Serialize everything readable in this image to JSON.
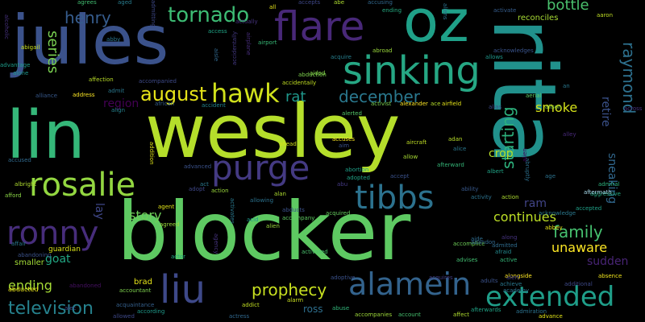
{
  "words": [
    {
      "text": "blocker",
      "color": "#5ec962"
    },
    {
      "text": "wesley",
      "color": "#b5de2b"
    },
    {
      "text": "rita",
      "color": "#21918c"
    },
    {
      "text": "jules",
      "color": "#3b528b"
    },
    {
      "text": "lin",
      "color": "#35b779"
    },
    {
      "text": "oz",
      "color": "#1fa088"
    },
    {
      "text": "flare",
      "color": "#482878"
    },
    {
      "text": "sinking",
      "color": "#26a784"
    },
    {
      "text": "purge",
      "color": "#443a83"
    },
    {
      "text": "rosalie",
      "color": "#93d741"
    },
    {
      "text": "tibbs",
      "color": "#2c728e"
    },
    {
      "text": "ronny",
      "color": "#472d7b"
    },
    {
      "text": "liu",
      "color": "#3e4989"
    },
    {
      "text": "alamein",
      "color": "#33638d"
    },
    {
      "text": "extended",
      "color": "#1f9e89"
    },
    {
      "text": "hawk",
      "color": "#d0e11c"
    },
    {
      "text": "tornado",
      "color": "#3dbc74"
    },
    {
      "text": "august",
      "color": "#e7e419"
    },
    {
      "text": "december",
      "color": "#2a788e"
    },
    {
      "text": "prophecy",
      "color": "#c8e020"
    },
    {
      "text": "television",
      "color": "#26828e"
    },
    {
      "text": "raymond",
      "color": "#2d708e"
    },
    {
      "text": "family",
      "color": "#46c06f"
    },
    {
      "text": "henry",
      "color": "#365c8d"
    },
    {
      "text": "bottle",
      "color": "#4ac16d"
    },
    {
      "text": "rat",
      "color": "#1f978b"
    },
    {
      "text": "starting",
      "color": "#2db27d"
    },
    {
      "text": "unaware",
      "color": "#fde725"
    },
    {
      "text": "continues",
      "color": "#bddf26"
    },
    {
      "text": "ending",
      "color": "#a5db36"
    },
    {
      "text": "story",
      "color": "#6ece58"
    },
    {
      "text": "smoke",
      "color": "#d5e21a"
    },
    {
      "text": "series",
      "color": "#7ad151"
    },
    {
      "text": "region",
      "color": "#440154"
    },
    {
      "text": "sudden",
      "color": "#482475"
    },
    {
      "text": "goat",
      "color": "#22a884"
    },
    {
      "text": "crop",
      "color": "#b8de29"
    },
    {
      "text": "retire",
      "color": "#3b528b"
    },
    {
      "text": "sneaking",
      "color": "#31688e"
    },
    {
      "text": "ram",
      "color": "#414487"
    },
    {
      "text": "lay",
      "color": "#3f4788"
    },
    {
      "text": "ross",
      "color": "#2e6f8e"
    },
    {
      "text": "brad",
      "color": "#e5e419"
    },
    {
      "text": "smaller",
      "color": "#a2da37"
    },
    {
      "text": "guardian",
      "color": "#d8e219"
    },
    {
      "text": "abandoned",
      "color": "#471164"
    },
    {
      "text": "accountant",
      "color": "#7fd34e"
    },
    {
      "text": "abducted",
      "color": "#eae51a"
    },
    {
      "text": "afford",
      "color": "#8bd646"
    },
    {
      "text": "albright",
      "color": "#b0dd2f"
    },
    {
      "text": "alliance",
      "color": "#38598c"
    },
    {
      "text": "address",
      "color": "#fde725"
    },
    {
      "text": "advantage",
      "color": "#1e9c89"
    },
    {
      "text": "alone",
      "color": "#1f988b"
    },
    {
      "text": "affection",
      "color": "#bade28"
    },
    {
      "text": "accompanied",
      "color": "#3e4a89"
    },
    {
      "text": "african",
      "color": "#35608d"
    },
    {
      "text": "accident",
      "color": "#25838e"
    },
    {
      "text": "abduction",
      "color": "#7fd34e"
    },
    {
      "text": "acquire",
      "color": "#277f8e"
    },
    {
      "text": "accidentaily",
      "color": "#c2df23"
    },
    {
      "text": "abroad",
      "color": "#9bd93c"
    },
    {
      "text": "alexander",
      "color": "#fde725"
    },
    {
      "text": "ace",
      "color": "#b5de2b"
    },
    {
      "text": "airfield",
      "color": "#e5e419"
    },
    {
      "text": "abby",
      "color": "#2b758e"
    },
    {
      "text": "airport",
      "color": "#38b977"
    },
    {
      "text": "access",
      "color": "#20a486"
    },
    {
      "text": "actually",
      "color": "#46337f"
    },
    {
      "text": "all",
      "color": "#e5e419"
    },
    {
      "text": "accepts",
      "color": "#3f4889"
    },
    {
      "text": "abe",
      "color": "#addc30"
    },
    {
      "text": "accusing",
      "color": "#31688e"
    },
    {
      "text": "ending2",
      "color": "#25ab82"
    },
    {
      "text": "aged",
      "color": "#287c8e"
    },
    {
      "text": "agrees",
      "color": "#42be71"
    },
    {
      "text": "activate",
      "color": "#365d8d"
    },
    {
      "text": "aaron",
      "color": "#c0df25"
    },
    {
      "text": "reconciles",
      "color": "#a8db34"
    },
    {
      "text": "acknowledges",
      "color": "#3a548c"
    },
    {
      "text": "allows",
      "color": "#1f978b"
    },
    {
      "text": "alice",
      "color": "#2a788e"
    },
    {
      "text": "admiral",
      "color": "#2db27d"
    },
    {
      "text": "aggressive",
      "color": "#25ab82"
    },
    {
      "text": "across",
      "color": "#46307e"
    },
    {
      "text": "alias",
      "color": "#3e4a89"
    },
    {
      "text": "alison",
      "color": "#8bd646"
    },
    {
      "text": "activist",
      "color": "#7ad151"
    },
    {
      "text": "aerial",
      "color": "#5cc863"
    },
    {
      "text": "alerted",
      "color": "#54c568"
    },
    {
      "text": "ahead",
      "color": "#d2e21b"
    },
    {
      "text": "accuses",
      "color": "#fde725"
    },
    {
      "text": "aircraft",
      "color": "#c0df25"
    },
    {
      "text": "adan",
      "color": "#b8de29"
    },
    {
      "text": "alley",
      "color": "#482979"
    },
    {
      "text": "afterward",
      "color": "#35b779"
    },
    {
      "text": "abortion",
      "color": "#1fa088"
    },
    {
      "text": "adopted",
      "color": "#20a386"
    },
    {
      "text": "accept",
      "color": "#3b528b"
    },
    {
      "text": "allow",
      "color": "#a8db34"
    },
    {
      "text": "abu",
      "color": "#443983"
    },
    {
      "text": "allowing",
      "color": "#2c728e"
    },
    {
      "text": "alan",
      "color": "#addc30"
    },
    {
      "text": "abducts",
      "color": "#3b528b"
    },
    {
      "text": "acid",
      "color": "#1f988b"
    },
    {
      "text": "alien",
      "color": "#9bd93c"
    },
    {
      "text": "acquired",
      "color": "#65cb5e"
    },
    {
      "text": "accompany",
      "color": "#5ec962"
    },
    {
      "text": "activated",
      "color": "#4ac16d"
    },
    {
      "text": "accomplice",
      "color": "#6ece58"
    },
    {
      "text": "adoptive",
      "color": "#3b528b"
    },
    {
      "text": "acquires",
      "color": "#433e85"
    },
    {
      "text": "adults",
      "color": "#3b528b"
    },
    {
      "text": "advises",
      "color": "#42be71"
    },
    {
      "text": "achieve",
      "color": "#2a788e"
    },
    {
      "text": "additional",
      "color": "#3e4a89"
    },
    {
      "text": "absence",
      "color": "#f1e51d"
    },
    {
      "text": "afterwards",
      "color": "#20a486"
    },
    {
      "text": "advance",
      "color": "#e2e418"
    },
    {
      "text": "accompanies",
      "color": "#9fda3a"
    },
    {
      "text": "account",
      "color": "#46c06f"
    },
    {
      "text": "affect",
      "color": "#b0dd2f"
    },
    {
      "text": "actress",
      "color": "#31688e"
    },
    {
      "text": "allowed",
      "color": "#3e4989"
    },
    {
      "text": "according",
      "color": "#1f9a8a"
    },
    {
      "text": "acquaintance",
      "color": "#35608d"
    },
    {
      "text": "adopt",
      "color": "#3f4788"
    },
    {
      "text": "addict",
      "color": "#c2df23"
    },
    {
      "text": "alarm",
      "color": "#c8e020"
    },
    {
      "text": "abuse",
      "color": "#32b67a"
    },
    {
      "text": "actor",
      "color": "#25ac82"
    },
    {
      "text": "agency",
      "color": "#46337f"
    },
    {
      "text": "agreed",
      "color": "#9bd93c"
    },
    {
      "text": "agent",
      "color": "#e2e418"
    },
    {
      "text": "activates",
      "color": "#2a788e"
    },
    {
      "text": "action",
      "color": "#9bd93c"
    },
    {
      "text": "act",
      "color": "#2a788e"
    },
    {
      "text": "advanced",
      "color": "#3b528b"
    },
    {
      "text": "addition",
      "color": "#dfe318"
    },
    {
      "text": "aide",
      "color": "#2f6c8e"
    },
    {
      "text": "abbey",
      "color": "#e7e419"
    },
    {
      "text": "accepted",
      "color": "#1fa188"
    },
    {
      "text": "acknowledge",
      "color": "#2a788e"
    },
    {
      "text": "aftermath",
      "color": "#ade"
    },
    {
      "text": "afraid",
      "color": "#23898e"
    },
    {
      "text": "active",
      "color": "#35b779"
    },
    {
      "text": "abandon",
      "color": "#31688e"
    },
    {
      "text": "admitted",
      "color": "#2f6c8e"
    },
    {
      "text": "along",
      "color": "#46337f"
    },
    {
      "text": "alongside",
      "color": "#fde725"
    },
    {
      "text": "alert",
      "color": "#433e85"
    },
    {
      "text": "academy",
      "color": "#2c728e"
    },
    {
      "text": "ability",
      "color": "#38598c"
    },
    {
      "text": "activity",
      "color": "#2c728e"
    },
    {
      "text": "action2",
      "color": "#addc30"
    },
    {
      "text": "albert",
      "color": "#20a486"
    },
    {
      "text": "abruptly",
      "color": "#2d708e"
    },
    {
      "text": "age",
      "color": "#2c728e"
    },
    {
      "text": "admit",
      "color": "#2a788e"
    },
    {
      "text": "admitting",
      "color": "#3e4989"
    },
    {
      "text": "alcoholic",
      "color": "#46307e"
    },
    {
      "text": "aisle",
      "color": "#31688e"
    },
    {
      "text": "aided",
      "color": "#84d44b"
    },
    {
      "text": "aliens",
      "color": "#2c728e"
    },
    {
      "text": "accidentally2",
      "color": "#443983"
    },
    {
      "text": "airplane",
      "color": "#472d7b"
    },
    {
      "text": "affair",
      "color": "#2a788e"
    },
    {
      "text": "abandoning",
      "color": "#3b528b"
    },
    {
      "text": "accused",
      "color": "#306a8e"
    },
    {
      "text": "alec",
      "color": "#3e4989"
    },
    {
      "text": "abigail",
      "color": "#c8e020"
    },
    {
      "text": "an",
      "color": "#2a788e"
    },
    {
      "text": "align",
      "color": "#26828e"
    },
    {
      "text": "aim",
      "color": "#3b528b"
    },
    {
      "text": "alien2",
      "color": "#44015b"
    },
    {
      "text": "admiration",
      "color": "#2c728e"
    },
    {
      "text": "adventure",
      "color": "#2c728e"
    }
  ]
}
